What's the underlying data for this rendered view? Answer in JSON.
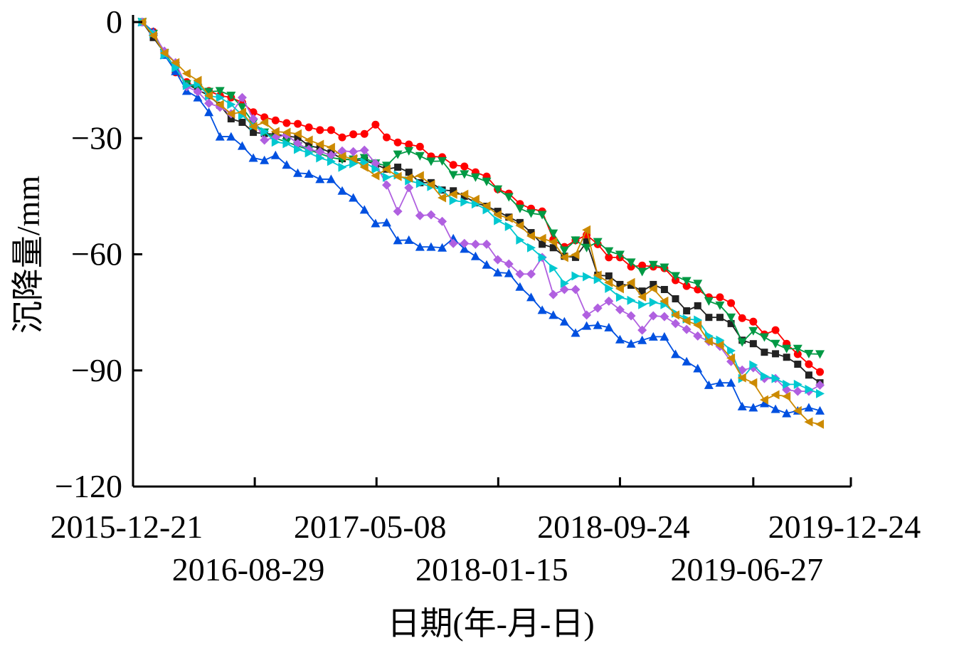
{
  "chart_data": {
    "type": "line",
    "title": "",
    "xlabel": "日期(年-月-日)",
    "ylabel": "沉降量/mm",
    "xlim": [
      "2015-12-21",
      "2020-01-15"
    ],
    "ylim": [
      -120,
      0
    ],
    "yticks": [
      0,
      -30,
      -60,
      -90,
      -120
    ],
    "xticks": [
      "2015-12-21",
      "2016-08-29",
      "2017-05-08",
      "2018-01-15",
      "2018-09-24",
      "2019-06-27",
      "2019-12-24"
    ],
    "grid": false,
    "legend": "none",
    "x": [
      "2016-01-09",
      "2016-02-01",
      "2016-02-24",
      "2016-03-18",
      "2016-04-10",
      "2016-05-03",
      "2016-05-26",
      "2016-06-18",
      "2016-07-11",
      "2016-08-03",
      "2016-08-26",
      "2016-09-18",
      "2016-10-11",
      "2016-11-03",
      "2016-11-26",
      "2016-12-19",
      "2017-01-11",
      "2017-02-03",
      "2017-02-26",
      "2017-03-21",
      "2017-04-13",
      "2017-05-06",
      "2017-05-29",
      "2017-06-21",
      "2017-07-14",
      "2017-08-06",
      "2017-08-29",
      "2017-09-21",
      "2017-10-14",
      "2017-11-06",
      "2017-11-29",
      "2017-12-22",
      "2018-01-14",
      "2018-02-06",
      "2018-03-01",
      "2018-03-24",
      "2018-04-16",
      "2018-05-09",
      "2018-06-01",
      "2018-06-24",
      "2018-07-17",
      "2018-08-09",
      "2018-09-01",
      "2018-09-24",
      "2018-10-17",
      "2018-11-09",
      "2018-12-02",
      "2018-12-25",
      "2019-01-17",
      "2019-02-09",
      "2019-03-04",
      "2019-03-27",
      "2019-04-19",
      "2019-05-12",
      "2019-06-04",
      "2019-06-27",
      "2019-07-20",
      "2019-08-12",
      "2019-09-04",
      "2019-09-27",
      "2019-10-20",
      "2019-11-12"
    ],
    "series": [
      {
        "color": "#ff0000",
        "marker": "circle",
        "values": [
          0,
          -2.5,
          -8,
          -13,
          -15.5,
          -17,
          -17.8,
          -19,
          -19.5,
          -20.8,
          -23.3,
          -24.6,
          -25.4,
          -26.1,
          -26.3,
          -27.2,
          -27.9,
          -27.9,
          -29.8,
          -29,
          -28.9,
          -26.5,
          -29.8,
          -31.1,
          -31.6,
          -32.2,
          -34.7,
          -34.9,
          -36.9,
          -37.3,
          -38.8,
          -39.9,
          -43.2,
          -44.3,
          -47,
          -48.2,
          -48.9,
          -56.2,
          -58.1,
          -56.4,
          -55,
          -57.4,
          -60.8,
          -60.8,
          -63.2,
          -62.9,
          -63.2,
          -63.6,
          -66.7,
          -68.2,
          -69.1,
          -71.1,
          -71.1,
          -72.6,
          -76.5,
          -77.4,
          -80.7,
          -79.6,
          -83.1,
          -85.8,
          -88.4,
          -90.4
        ]
      },
      {
        "color": "#222222",
        "marker": "square",
        "values": [
          0,
          -4,
          -8,
          -12,
          -16,
          -17.5,
          -19,
          -21.5,
          -25,
          -25.9,
          -28.5,
          -28.8,
          -29,
          -29.5,
          -29.8,
          -32,
          -32.5,
          -33.8,
          -35.3,
          -35.7,
          -35.7,
          -36.8,
          -38,
          -37.5,
          -38.8,
          -41.5,
          -41.5,
          -43.4,
          -43.6,
          -45,
          -46.7,
          -47.6,
          -48.9,
          -50.4,
          -51.8,
          -54.4,
          -57.4,
          -58.3,
          -60.5,
          -60.8,
          -56.8,
          -65.4,
          -65.6,
          -67.8,
          -68,
          -69.5,
          -67.8,
          -69.1,
          -71.5,
          -74.6,
          -73.3,
          -76.3,
          -76.3,
          -77.9,
          -82.2,
          -83.1,
          -85.3,
          -85.7,
          -86.6,
          -88.4,
          -91.2,
          -93.2
        ]
      },
      {
        "color": "#009944",
        "marker": "triangle-down",
        "values": [
          0,
          -3,
          -8,
          -12,
          -16,
          -17,
          -18,
          -17.8,
          -19,
          -22,
          -26,
          -28.5,
          -30,
          -31,
          -32,
          -33,
          -34,
          -35,
          -35.5,
          -35.5,
          -35.1,
          -36.5,
          -37.1,
          -34.2,
          -33.3,
          -34.6,
          -36,
          -35.9,
          -39.5,
          -39.3,
          -40.1,
          -41.2,
          -43.2,
          -45.2,
          -48.2,
          -49.4,
          -49.8,
          -54.6,
          -59,
          -56.4,
          -58.3,
          -56.8,
          -59.2,
          -60.1,
          -62.1,
          -64.5,
          -62.7,
          -63.4,
          -65.6,
          -66.9,
          -67.6,
          -72.1,
          -73.2,
          -76.3,
          -82.7,
          -79.8,
          -81.4,
          -83.1,
          -84.4,
          -84.4,
          -85.7,
          -85.8
        ]
      },
      {
        "color": "#0050e0",
        "marker": "triangle-up",
        "values": [
          0,
          -2.5,
          -8.5,
          -12.7,
          -17.8,
          -19.5,
          -23.3,
          -29.6,
          -29.6,
          -32,
          -35.1,
          -35.7,
          -34.4,
          -36.9,
          -39,
          -39.2,
          -40.6,
          -40.6,
          -43.6,
          -45.4,
          -48.5,
          -52,
          -51.8,
          -56.4,
          -56.3,
          -58.1,
          -58.1,
          -58.3,
          -55.9,
          -58.6,
          -60.5,
          -62.7,
          -64.7,
          -64.9,
          -68.4,
          -71.1,
          -74.4,
          -75.7,
          -77.4,
          -80.3,
          -78.5,
          -78.3,
          -78.9,
          -82,
          -83.1,
          -82.2,
          -81.3,
          -81.3,
          -85.8,
          -87.7,
          -89.5,
          -93.8,
          -93.2,
          -93.2,
          -99.3,
          -99.6,
          -98.5,
          -100,
          -101.1,
          -100.4,
          -99.6,
          -100.4
        ]
      },
      {
        "color": "#b060e0",
        "marker": "diamond",
        "values": [
          0,
          -3,
          -7.5,
          -10.5,
          -16.7,
          -18,
          -21,
          -22,
          -23.7,
          -19.5,
          -25,
          -30.5,
          -29.8,
          -29.2,
          -31.4,
          -32.9,
          -33.5,
          -34.4,
          -33.3,
          -33.5,
          -33.1,
          -36.5,
          -42.1,
          -48.9,
          -42.8,
          -50,
          -49.8,
          -51.5,
          -57.2,
          -57.2,
          -57.4,
          -57.4,
          -61.4,
          -62.5,
          -65.1,
          -65.1,
          -60.8,
          -70.4,
          -69.1,
          -69.1,
          -75.7,
          -73.9,
          -72.1,
          -74.3,
          -75.9,
          -79.6,
          -75.9,
          -76.1,
          -77.9,
          -79.4,
          -81.1,
          -82.5,
          -83.8,
          -87.7,
          -89.9,
          -89.3,
          -92.1,
          -92.1,
          -95,
          -95.4,
          -95.4,
          -93.8
        ]
      },
      {
        "color": "#00c8d0",
        "marker": "triangle-right",
        "values": [
          0,
          -2.9,
          -8.5,
          -11.8,
          -16.4,
          -16,
          -19.1,
          -19.5,
          -21.3,
          -24.1,
          -26.8,
          -28.3,
          -31,
          -31.4,
          -32.9,
          -33.8,
          -35.1,
          -36,
          -37.5,
          -36.6,
          -36.2,
          -38,
          -40.1,
          -39.5,
          -41,
          -41.7,
          -42.5,
          -43.4,
          -46.1,
          -46.5,
          -47,
          -48.5,
          -51.3,
          -52.8,
          -56.3,
          -58.3,
          -60.8,
          -63.6,
          -67.5,
          -65.6,
          -65.8,
          -66.5,
          -68.8,
          -71.1,
          -71.9,
          -73,
          -72.4,
          -73,
          -75.2,
          -76.7,
          -77,
          -81.1,
          -82.2,
          -84.9,
          -92.1,
          -88.6,
          -91.5,
          -92.1,
          -93.6,
          -93.6,
          -94.9,
          -96
        ]
      },
      {
        "color": "#cc8a00",
        "marker": "triangle-left",
        "values": [
          0,
          -3.5,
          -8,
          -10.5,
          -13.3,
          -15.1,
          -19,
          -21.3,
          -23.7,
          -23.3,
          -27,
          -25.9,
          -28.3,
          -28.5,
          -28.9,
          -30.5,
          -31.6,
          -32.4,
          -34.7,
          -35.3,
          -37.5,
          -39.7,
          -38,
          -39.9,
          -40.3,
          -39.7,
          -42,
          -45.4,
          -44.5,
          -44.5,
          -45.8,
          -47.5,
          -49.8,
          -50.7,
          -52.6,
          -55.3,
          -55.9,
          -56.8,
          -60.8,
          -60.1,
          -53.7,
          -65.4,
          -67.3,
          -68.9,
          -67.3,
          -71,
          -68.9,
          -72.1,
          -75.7,
          -77.2,
          -78.3,
          -82.5,
          -83.5,
          -86.8,
          -91.9,
          -93.2,
          -97.6,
          -96.3,
          -96.7,
          -100.4,
          -103.3,
          -103.9
        ]
      }
    ]
  }
}
